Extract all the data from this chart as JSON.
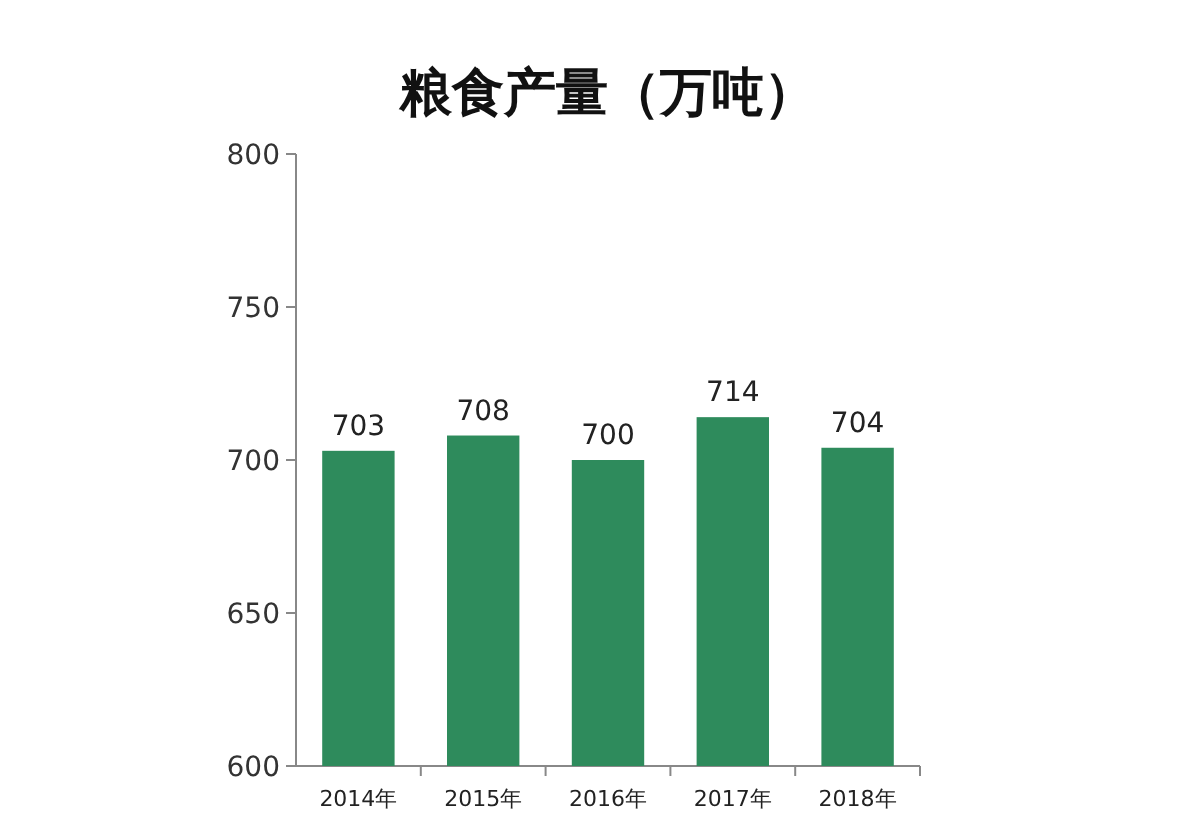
{
  "chart_data": {
    "type": "bar",
    "title": "粮食产量（万吨）",
    "categories": [
      "2014年",
      "2015年",
      "2016年",
      "2017年",
      "2018年"
    ],
    "values": [
      703,
      708,
      700,
      714,
      704
    ],
    "color": "#2e8b5c",
    "ylim": [
      600,
      800
    ],
    "yticks": [
      600,
      650,
      700,
      750,
      800
    ],
    "data_labels": true
  }
}
